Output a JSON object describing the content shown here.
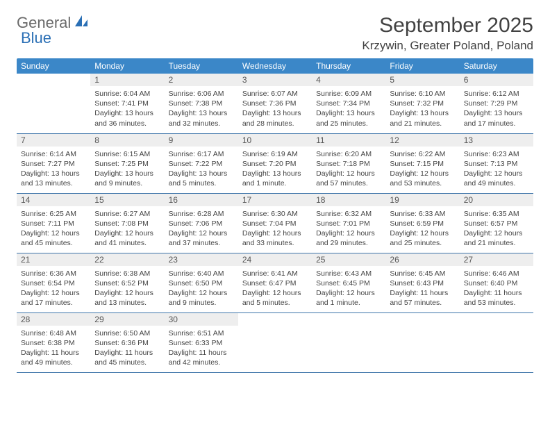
{
  "brand": {
    "part1": "General",
    "part2": "Blue"
  },
  "title": "September 2025",
  "location": "Krzywin, Greater Poland, Poland",
  "colors": {
    "header_bg": "#3b87c8",
    "header_text": "#ffffff",
    "row_border": "#3b73a8",
    "daynum_bg": "#eeeeee",
    "text": "#444444",
    "logo_gray": "#6a6a6a",
    "logo_blue": "#2a6fb5"
  },
  "days_of_week": [
    "Sunday",
    "Monday",
    "Tuesday",
    "Wednesday",
    "Thursday",
    "Friday",
    "Saturday"
  ],
  "weeks": [
    [
      null,
      {
        "n": "1",
        "sunrise": "6:04 AM",
        "sunset": "7:41 PM",
        "daylight": "13 hours and 36 minutes."
      },
      {
        "n": "2",
        "sunrise": "6:06 AM",
        "sunset": "7:38 PM",
        "daylight": "13 hours and 32 minutes."
      },
      {
        "n": "3",
        "sunrise": "6:07 AM",
        "sunset": "7:36 PM",
        "daylight": "13 hours and 28 minutes."
      },
      {
        "n": "4",
        "sunrise": "6:09 AM",
        "sunset": "7:34 PM",
        "daylight": "13 hours and 25 minutes."
      },
      {
        "n": "5",
        "sunrise": "6:10 AM",
        "sunset": "7:32 PM",
        "daylight": "13 hours and 21 minutes."
      },
      {
        "n": "6",
        "sunrise": "6:12 AM",
        "sunset": "7:29 PM",
        "daylight": "13 hours and 17 minutes."
      }
    ],
    [
      {
        "n": "7",
        "sunrise": "6:14 AM",
        "sunset": "7:27 PM",
        "daylight": "13 hours and 13 minutes."
      },
      {
        "n": "8",
        "sunrise": "6:15 AM",
        "sunset": "7:25 PM",
        "daylight": "13 hours and 9 minutes."
      },
      {
        "n": "9",
        "sunrise": "6:17 AM",
        "sunset": "7:22 PM",
        "daylight": "13 hours and 5 minutes."
      },
      {
        "n": "10",
        "sunrise": "6:19 AM",
        "sunset": "7:20 PM",
        "daylight": "13 hours and 1 minute."
      },
      {
        "n": "11",
        "sunrise": "6:20 AM",
        "sunset": "7:18 PM",
        "daylight": "12 hours and 57 minutes."
      },
      {
        "n": "12",
        "sunrise": "6:22 AM",
        "sunset": "7:15 PM",
        "daylight": "12 hours and 53 minutes."
      },
      {
        "n": "13",
        "sunrise": "6:23 AM",
        "sunset": "7:13 PM",
        "daylight": "12 hours and 49 minutes."
      }
    ],
    [
      {
        "n": "14",
        "sunrise": "6:25 AM",
        "sunset": "7:11 PM",
        "daylight": "12 hours and 45 minutes."
      },
      {
        "n": "15",
        "sunrise": "6:27 AM",
        "sunset": "7:08 PM",
        "daylight": "12 hours and 41 minutes."
      },
      {
        "n": "16",
        "sunrise": "6:28 AM",
        "sunset": "7:06 PM",
        "daylight": "12 hours and 37 minutes."
      },
      {
        "n": "17",
        "sunrise": "6:30 AM",
        "sunset": "7:04 PM",
        "daylight": "12 hours and 33 minutes."
      },
      {
        "n": "18",
        "sunrise": "6:32 AM",
        "sunset": "7:01 PM",
        "daylight": "12 hours and 29 minutes."
      },
      {
        "n": "19",
        "sunrise": "6:33 AM",
        "sunset": "6:59 PM",
        "daylight": "12 hours and 25 minutes."
      },
      {
        "n": "20",
        "sunrise": "6:35 AM",
        "sunset": "6:57 PM",
        "daylight": "12 hours and 21 minutes."
      }
    ],
    [
      {
        "n": "21",
        "sunrise": "6:36 AM",
        "sunset": "6:54 PM",
        "daylight": "12 hours and 17 minutes."
      },
      {
        "n": "22",
        "sunrise": "6:38 AM",
        "sunset": "6:52 PM",
        "daylight": "12 hours and 13 minutes."
      },
      {
        "n": "23",
        "sunrise": "6:40 AM",
        "sunset": "6:50 PM",
        "daylight": "12 hours and 9 minutes."
      },
      {
        "n": "24",
        "sunrise": "6:41 AM",
        "sunset": "6:47 PM",
        "daylight": "12 hours and 5 minutes."
      },
      {
        "n": "25",
        "sunrise": "6:43 AM",
        "sunset": "6:45 PM",
        "daylight": "12 hours and 1 minute."
      },
      {
        "n": "26",
        "sunrise": "6:45 AM",
        "sunset": "6:43 PM",
        "daylight": "11 hours and 57 minutes."
      },
      {
        "n": "27",
        "sunrise": "6:46 AM",
        "sunset": "6:40 PM",
        "daylight": "11 hours and 53 minutes."
      }
    ],
    [
      {
        "n": "28",
        "sunrise": "6:48 AM",
        "sunset": "6:38 PM",
        "daylight": "11 hours and 49 minutes."
      },
      {
        "n": "29",
        "sunrise": "6:50 AM",
        "sunset": "6:36 PM",
        "daylight": "11 hours and 45 minutes."
      },
      {
        "n": "30",
        "sunrise": "6:51 AM",
        "sunset": "6:33 PM",
        "daylight": "11 hours and 42 minutes."
      },
      null,
      null,
      null,
      null
    ]
  ],
  "labels": {
    "sunrise": "Sunrise:",
    "sunset": "Sunset:",
    "daylight": "Daylight:"
  }
}
